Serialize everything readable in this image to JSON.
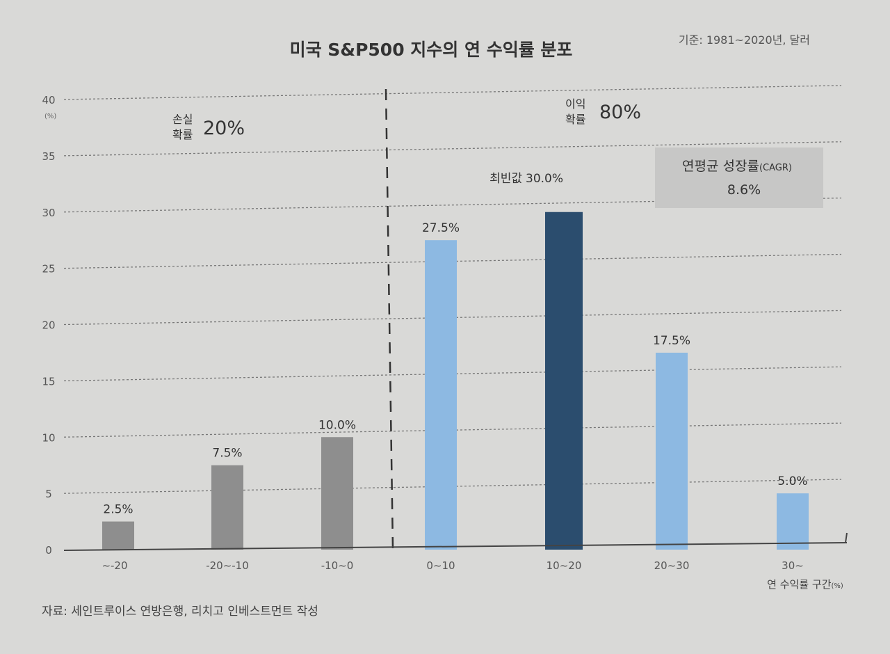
{
  "chart_data": {
    "type": "bar",
    "title": "미국 S&P500 지수의 연 수익률 분포",
    "subtitle": "기준: 1981~2020년, 달러",
    "y_unit": "(%)",
    "xlabel": "연 수익률 구간",
    "xlabel_unit": "(%)",
    "ylim": [
      0,
      40
    ],
    "yticks": [
      0,
      5,
      10,
      15,
      20,
      25,
      30,
      35,
      40
    ],
    "grid": true,
    "categories": [
      "~-20",
      "-20~-10",
      "-10~0",
      "0~10",
      "10~20",
      "20~30",
      "30~"
    ],
    "values": [
      2.5,
      7.5,
      10.0,
      27.5,
      30.0,
      17.5,
      5.0
    ],
    "value_labels": [
      "2.5%",
      "7.5%",
      "10.0%",
      "27.5%",
      "30.0%",
      "17.5%",
      "5.0%"
    ],
    "bar_groups": [
      "loss",
      "loss",
      "loss",
      "gain",
      "mode",
      "gain",
      "gain"
    ],
    "colors": {
      "loss": "#8e8e8e",
      "gain": "#8db9e2",
      "mode": "#2b4d6e",
      "grid": "#777777",
      "box": "#c7c7c6"
    },
    "annotations": {
      "loss_line1": "손실",
      "loss_line2": "확률",
      "loss_value": "20%",
      "gain_line1": "이익",
      "gain_line2": "확률",
      "gain_value": "80%",
      "mode_label": "최빈값",
      "cagr_title": "연평균 성장률",
      "cagr_suffix": "(CAGR)",
      "cagr_value": "8.6%"
    },
    "source": "자료: 세인트루이스 연방은행, 리치고 인베스트먼트 작성"
  }
}
